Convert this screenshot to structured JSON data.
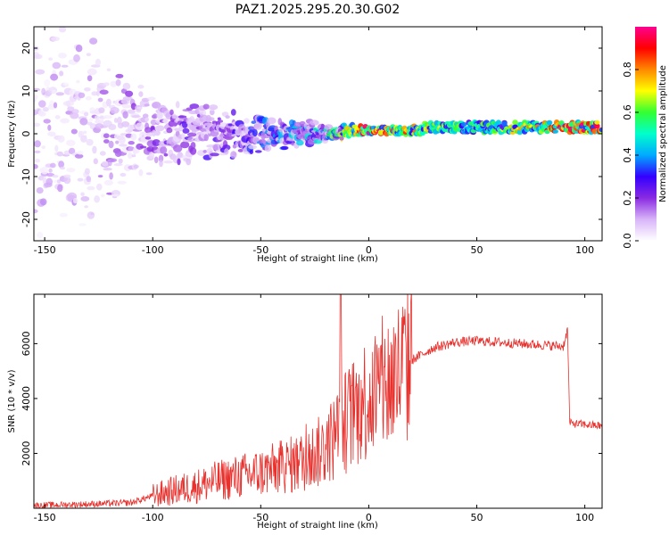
{
  "title": "PAZ1.2025.295.20.30.G02",
  "chart_data": [
    {
      "type": "heatmap",
      "xlabel": "Height of straight line (km)",
      "ylabel": "Frequency (Hz)",
      "xlim": [
        -155,
        108
      ],
      "ylim": [
        -25,
        25
      ],
      "xticks": [
        "-150",
        "-100",
        "-50",
        "0",
        "50",
        "100"
      ],
      "yticks": [
        "-20",
        "-10",
        "0",
        "10",
        "20"
      ],
      "colorbar": {
        "label": "Normalized spectral amplitude",
        "range": [
          0,
          1
        ],
        "ticks": [
          "0.0",
          "0.2",
          "0.4",
          "0.6",
          "0.8"
        ],
        "colors": [
          "#ffffff",
          "#d8b4f8",
          "#8a2be2",
          "#3300ff",
          "#00aaff",
          "#00ffcc",
          "#33ff33",
          "#ffff00",
          "#ff8800",
          "#ff0000",
          "#ff0090"
        ]
      },
      "description_points": [
        {
          "x": -140,
          "spread": 25,
          "amp": 0.12
        },
        {
          "x": -100,
          "spread": 8,
          "amp": 0.2
        },
        {
          "x": -60,
          "spread": 5,
          "amp": 0.3
        },
        {
          "x": -20,
          "spread": 2,
          "amp": 0.5
        },
        {
          "x": 0,
          "spread": 0.8,
          "amp": 0.95
        },
        {
          "x": 50,
          "spread": 1.2,
          "amp": 0.55
        },
        {
          "x": 90,
          "spread": 1.2,
          "amp": 0.9
        }
      ]
    },
    {
      "type": "line",
      "xlabel": "Height of straight line (km)",
      "ylabel": "SNR (10 * v/v)",
      "xlim": [
        -155,
        108
      ],
      "ylim": [
        0,
        7800
      ],
      "xticks": [
        "-150",
        "-100",
        "-50",
        "0",
        "50",
        "100"
      ],
      "yticks": [
        "2000",
        "4000",
        "6000"
      ],
      "series": [
        {
          "name": "SNR",
          "color": "#e8302c",
          "x": [
            -155,
            -130,
            -110,
            -100,
            -90,
            -80,
            -70,
            -60,
            -50,
            -40,
            -30,
            -20,
            -15,
            -10,
            -5,
            0,
            10,
            20,
            30,
            40,
            50,
            60,
            70,
            80,
            90,
            92,
            93,
            100,
            108
          ],
          "y": [
            100,
            150,
            200,
            450,
            650,
            800,
            1000,
            1150,
            1300,
            1500,
            1700,
            2200,
            2700,
            3200,
            3700,
            4100,
            4600,
            5400,
            5850,
            6050,
            6100,
            6050,
            6000,
            5950,
            5900,
            6500,
            3100,
            3050,
            3000
          ]
        }
      ]
    }
  ]
}
